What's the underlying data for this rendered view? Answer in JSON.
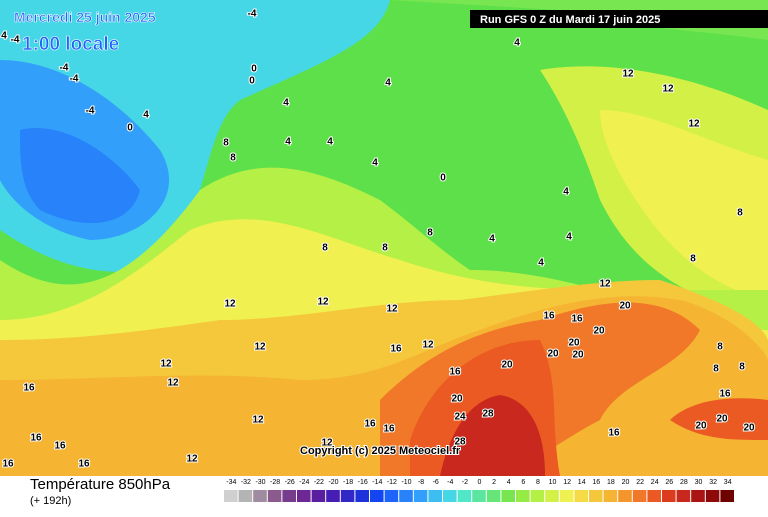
{
  "header": {
    "date": "Mercredi 25 juin 2025",
    "time": "1:00 locale",
    "run": "Run GFS 0 Z du Mardi 17 juin 2025",
    "copyright": "Copyright (c) 2025 Meteociel.fr"
  },
  "footer": {
    "title": "Température 850hPa",
    "subtitle": "(+ 192h)"
  },
  "legend": {
    "ticks": [
      -34,
      -32,
      -30,
      -28,
      -26,
      -24,
      -22,
      -20,
      -18,
      -16,
      -14,
      -12,
      -10,
      -8,
      -6,
      -4,
      -2,
      0,
      2,
      4,
      6,
      8,
      10,
      12,
      14,
      16,
      18,
      20,
      22,
      24,
      26,
      28,
      30,
      32,
      34
    ],
    "colors": [
      "#d0d0d0",
      "#b4b4b4",
      "#a08ca0",
      "#8c5a8c",
      "#783c8c",
      "#6e2896",
      "#5a1ea0",
      "#461eb4",
      "#3228c8",
      "#1e32dc",
      "#1446f0",
      "#1e64fa",
      "#2882fa",
      "#32a0fa",
      "#3cbef0",
      "#46d7e6",
      "#50e6c8",
      "#5ae6a0",
      "#64e678",
      "#78e650",
      "#96eb46",
      "#b4f046",
      "#d2f046",
      "#f0f050",
      "#f5dc46",
      "#f5c83c",
      "#f5b432",
      "#f5962d",
      "#f07828",
      "#eb5a23",
      "#dc3c1e",
      "#c8281e",
      "#aa1414",
      "#8c0a0a",
      "#6e0000"
    ]
  },
  "contour_labels": [
    "-4",
    "4",
    "-4",
    "-4",
    "-4",
    "-4",
    "0",
    "4",
    "0",
    "0",
    "4",
    "4",
    "4",
    "12",
    "12",
    "12",
    "8",
    "8",
    "4",
    "4",
    "4",
    "0",
    "4",
    "8",
    "8",
    "8",
    "8",
    "4",
    "4",
    "4",
    "8",
    "12",
    "12",
    "12",
    "12",
    "12",
    "12",
    "12",
    "16",
    "16",
    "12",
    "16",
    "20",
    "20",
    "24",
    "28",
    "28",
    "16",
    "16",
    "20",
    "20",
    "20",
    "20",
    "20",
    "8",
    "8",
    "8",
    "16",
    "20",
    "20",
    "20",
    "16",
    "16",
    "16",
    "12",
    "16",
    "16",
    "16",
    "16",
    "12",
    "12"
  ]
}
